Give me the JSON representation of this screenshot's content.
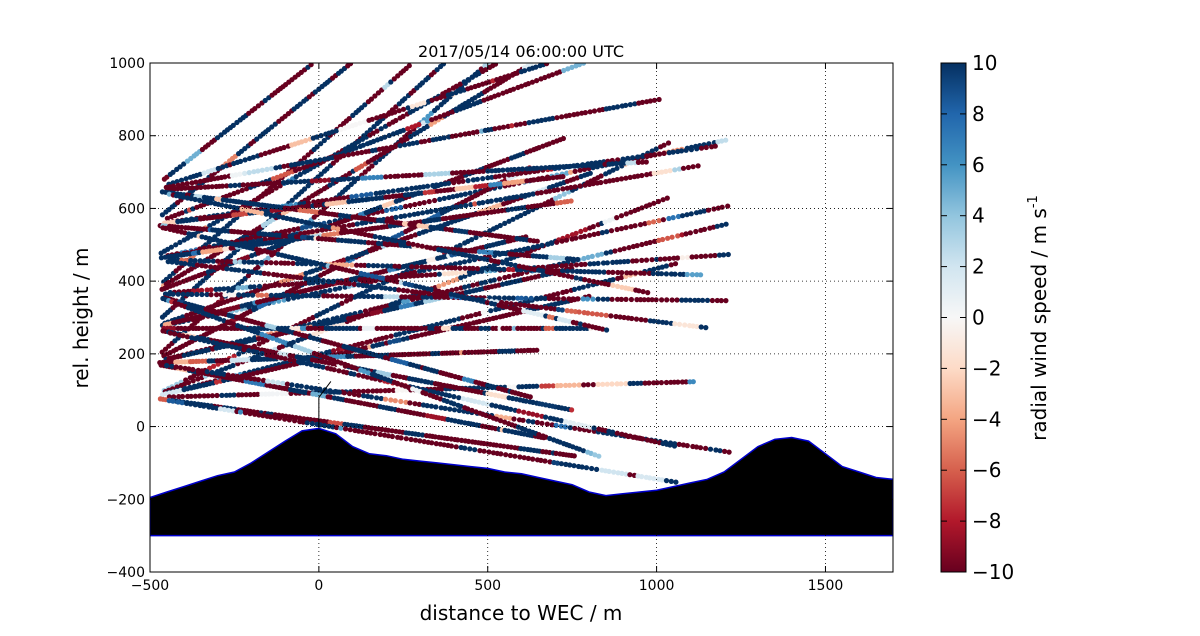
{
  "chart_data": {
    "type": "scatter",
    "title": "2017/05/14 06:00:00 UTC",
    "xlabel": "distance to WEC / m",
    "ylabel": "rel. height / m",
    "xlim": [
      -500,
      1700
    ],
    "ylim": [
      -400,
      1000
    ],
    "xticks": [
      "-500",
      "0",
      "500",
      "1000",
      "1500"
    ],
    "yticks": [
      "-400",
      "-200",
      "0",
      "200",
      "400",
      "600",
      "800",
      "1000"
    ],
    "grid": true,
    "colorbar": {
      "label": "radial wind speed / m s",
      "label_superscript": "-1",
      "range": [
        -10,
        10
      ],
      "ticks": [
        "10",
        "8",
        "6",
        "4",
        "2",
        "0",
        "−2",
        "−4",
        "−6",
        "−8",
        "−10"
      ],
      "colormap": "RdBu",
      "colors": [
        "#67001f",
        "#b2182b",
        "#d6604d",
        "#f4a582",
        "#fddbc7",
        "#f7f7f7",
        "#d1e5f0",
        "#92c5de",
        "#4393c3",
        "#2166ac",
        "#053061"
      ]
    },
    "scan": {
      "origin": [
        -500,
        80
      ],
      "max_range_m": 1800,
      "elevation_top_deg": 10,
      "elevation_bottom_deg": -5,
      "description_values": "radial wind speed samples along lidar beams, mostly saturated at the colour limits"
    },
    "terrain": {
      "x": [
        -500,
        -450,
        -400,
        -350,
        -300,
        -250,
        -200,
        -150,
        -100,
        -50,
        0,
        50,
        100,
        150,
        200,
        250,
        300,
        350,
        400,
        450,
        500,
        550,
        600,
        650,
        700,
        750,
        800,
        850,
        900,
        950,
        1000,
        1050,
        1100,
        1150,
        1200,
        1250,
        1300,
        1350,
        1400,
        1450,
        1500,
        1550,
        1600,
        1650,
        1700
      ],
      "y": [
        -195,
        -180,
        -165,
        -150,
        -135,
        -125,
        -100,
        -70,
        -40,
        -12,
        -5,
        -20,
        -55,
        -75,
        -80,
        -90,
        -95,
        -100,
        -105,
        -110,
        -115,
        -125,
        -130,
        -140,
        -150,
        -160,
        -180,
        -190,
        -185,
        -180,
        -175,
        -165,
        -155,
        -145,
        -125,
        -90,
        -55,
        -35,
        -30,
        -40,
        -75,
        -110,
        -125,
        -140,
        -145
      ],
      "floor": -300,
      "fill": "#000000",
      "outline": "#0000cc"
    },
    "wec": {
      "x": 0,
      "hub_height": 80
    }
  }
}
